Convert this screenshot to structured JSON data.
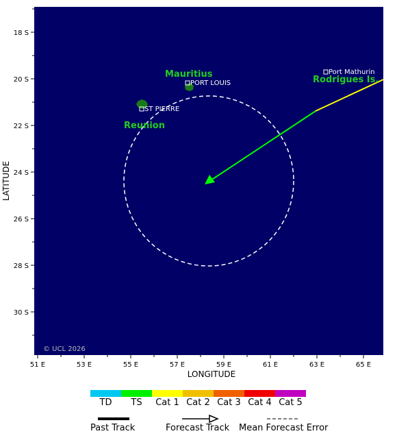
{
  "map": {
    "lon_range": [
      50.9,
      56.0
    ],
    "lat_range": [
      -32.0,
      -17.0
    ],
    "lon_ticks": [
      "51 E",
      "53 E",
      "55 E",
      "57 E",
      "59 E",
      "61 E",
      "63 E",
      "65 E"
    ],
    "lat_ticks": [
      "18 S",
      "20 S",
      "22 S",
      "24 S",
      "26 S",
      "28 S",
      "30 S"
    ],
    "xlabel": "LONGITUDE",
    "ylabel": "LATITUDE",
    "ocean_color": "#000066",
    "land_color": "#1a7a1a",
    "copyright": "© UCL 2026"
  },
  "places": [
    {
      "name": "PORT LOUIS",
      "kind": "city"
    },
    {
      "name": "ST PIERRE",
      "kind": "city"
    },
    {
      "name": "Port Mathurin",
      "kind": "city"
    }
  ],
  "islands": [
    {
      "name": "Mauritius"
    },
    {
      "name": "Reunion"
    },
    {
      "name": "Rodrigues Is."
    }
  ],
  "storm_track": {
    "past_track_color": "#ffff00",
    "forecast_color": "#00ff00",
    "error_circle_color": "#ffffff"
  },
  "legend": {
    "categories": [
      {
        "label": "TD",
        "color": "#00c8f0"
      },
      {
        "label": "TS",
        "color": "#00f000"
      },
      {
        "label": "Cat 1",
        "color": "#ffff00"
      },
      {
        "label": "Cat 2",
        "color": "#f0c000"
      },
      {
        "label": "Cat 3",
        "color": "#f06000"
      },
      {
        "label": "Cat 4",
        "color": "#f00000"
      },
      {
        "label": "Cat 5",
        "color": "#c000c0"
      }
    ],
    "past_track": "Past Track",
    "forecast_track": "Forecast Track",
    "mean_error": "Mean Forecast Error"
  }
}
